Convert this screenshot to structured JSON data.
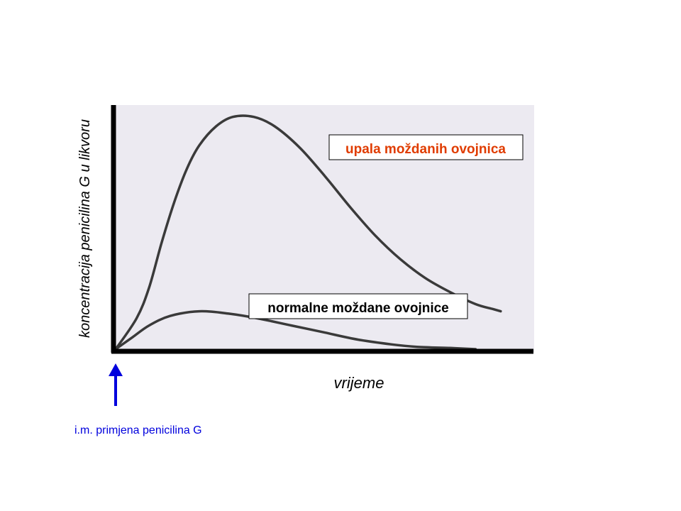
{
  "chart_data": {
    "type": "line",
    "title": "",
    "xlabel": "vrijeme",
    "ylabel": "koncentracija penicilina G u likvoru",
    "xlim": [
      0,
      100
    ],
    "ylim": [
      0,
      100
    ],
    "grid": false,
    "series": [
      {
        "name": "upala moždanih ovojnica",
        "color": "#e03c00",
        "x": [
          0,
          5,
          8,
          11,
          14,
          17,
          20,
          24,
          28,
          33,
          38,
          44,
          50,
          56,
          62,
          68,
          74,
          80,
          86,
          90,
          92
        ],
        "y": [
          0,
          13,
          26,
          45,
          62,
          76,
          86,
          94,
          98,
          98,
          94,
          85,
          73,
          60,
          48,
          38,
          30,
          24,
          19,
          17,
          16
        ]
      },
      {
        "name": "normalne moždane ovojnice",
        "color": "#000000",
        "x": [
          0,
          4,
          8,
          13,
          20,
          27,
          34,
          42,
          50,
          58,
          66,
          72,
          80,
          86
        ],
        "y": [
          0,
          5,
          10,
          14,
          16,
          15,
          13,
          10,
          7,
          4,
          2,
          1,
          0.5,
          0
        ]
      }
    ]
  },
  "annotation": {
    "arrow_label": "i.m. primjena penicilina G",
    "arrow_color": "#0000dd"
  }
}
